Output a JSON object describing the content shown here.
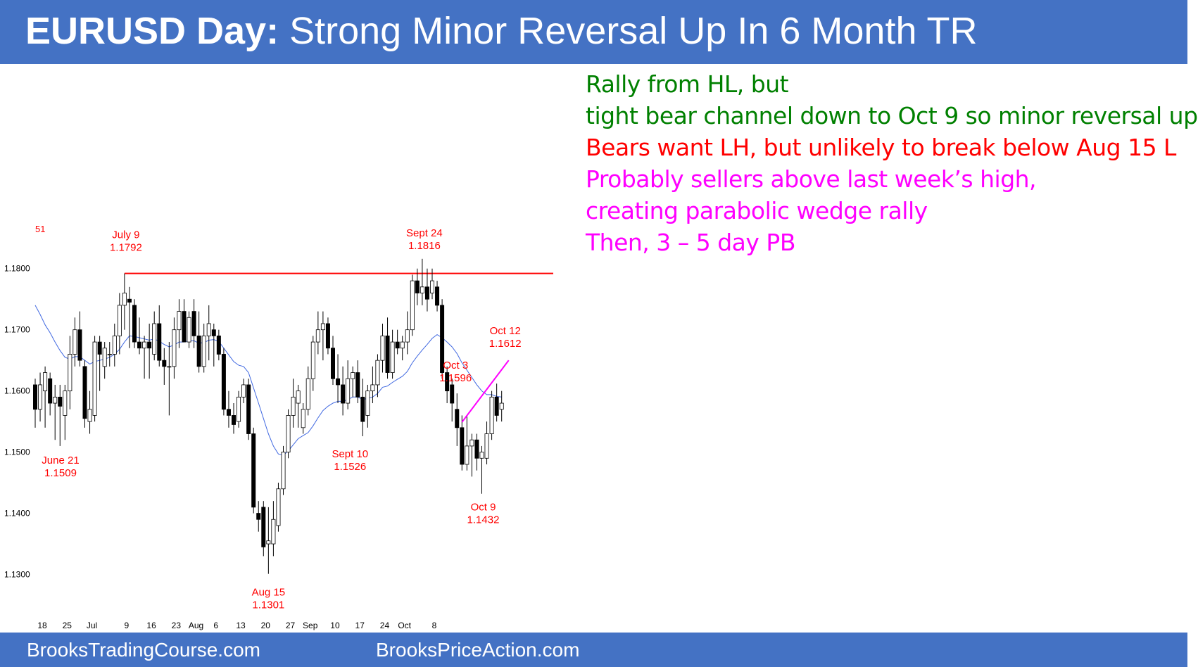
{
  "header": {
    "title_bold": "EURUSD Day:",
    "title_rest": " Strong Minor Reversal Up In 6 Month TR"
  },
  "notes": [
    {
      "text": "Rally from HL, but",
      "color": "#008000"
    },
    {
      "text": "tight bear channel down to Oct 9 so minor reversal up",
      "color": "#008000"
    },
    {
      "text": "Bears want LH, but unlikely to break below Aug 15 L",
      "color": "#ff0000"
    },
    {
      "text": "Probably sellers above last week’s high,",
      "color": "#ff00ff"
    },
    {
      "text": "creating parabolic wedge rally",
      "color": "#ff00ff"
    },
    {
      "text": "Then, 3 – 5 day PB",
      "color": "#ff00ff"
    }
  ],
  "footer": {
    "left": "BrooksTradingCourse.com",
    "right": "BrooksPriceAction.com"
  },
  "colors": {
    "bar": "#4472c4",
    "annotation": "#ff0000",
    "wedge": "#ff00ff",
    "ema": "#4169e1",
    "axis_text": "#000000"
  },
  "chart_data": {
    "type": "candlestick",
    "corner_label": "51",
    "ylim": [
      1.125,
      1.1875
    ],
    "y_ticks": [
      "1.1800",
      "1.1700",
      "1.1600",
      "1.1500",
      "1.1400",
      "1.1300"
    ],
    "x_ticks": [
      "18",
      "25",
      "Jul",
      "9",
      "16",
      "23",
      "Aug",
      "6",
      "13",
      "20",
      "27",
      "Sep",
      "10",
      "17",
      "24",
      "Oct",
      "8"
    ],
    "candles": [
      {
        "o": 1.161,
        "h": 1.162,
        "l": 1.154,
        "c": 1.157
      },
      {
        "o": 1.157,
        "h": 1.163,
        "l": 1.155,
        "c": 1.161
      },
      {
        "o": 1.16,
        "h": 1.164,
        "l": 1.154,
        "c": 1.163
      },
      {
        "o": 1.162,
        "h": 1.163,
        "l": 1.156,
        "c": 1.158
      },
      {
        "o": 1.158,
        "h": 1.161,
        "l": 1.152,
        "c": 1.159
      },
      {
        "o": 1.159,
        "h": 1.161,
        "l": 1.151,
        "c": 1.1575
      },
      {
        "o": 1.156,
        "h": 1.161,
        "l": 1.152,
        "c": 1.16
      },
      {
        "o": 1.16,
        "h": 1.169,
        "l": 1.157,
        "c": 1.166
      },
      {
        "o": 1.166,
        "h": 1.172,
        "l": 1.164,
        "c": 1.17
      },
      {
        "o": 1.17,
        "h": 1.173,
        "l": 1.164,
        "c": 1.165
      },
      {
        "o": 1.164,
        "h": 1.165,
        "l": 1.154,
        "c": 1.1555
      },
      {
        "o": 1.155,
        "h": 1.16,
        "l": 1.153,
        "c": 1.157
      },
      {
        "o": 1.156,
        "h": 1.169,
        "l": 1.155,
        "c": 1.168
      },
      {
        "o": 1.168,
        "h": 1.169,
        "l": 1.16,
        "c": 1.166
      },
      {
        "o": 1.164,
        "h": 1.168,
        "l": 1.162,
        "c": 1.167
      },
      {
        "o": 1.166,
        "h": 1.168,
        "l": 1.164,
        "c": 1.166
      },
      {
        "o": 1.166,
        "h": 1.171,
        "l": 1.164,
        "c": 1.169
      },
      {
        "o": 1.169,
        "h": 1.176,
        "l": 1.166,
        "c": 1.174
      },
      {
        "o": 1.174,
        "h": 1.1792,
        "l": 1.17,
        "c": 1.176
      },
      {
        "o": 1.175,
        "h": 1.177,
        "l": 1.167,
        "c": 1.1745
      },
      {
        "o": 1.174,
        "h": 1.175,
        "l": 1.167,
        "c": 1.168
      },
      {
        "o": 1.168,
        "h": 1.172,
        "l": 1.166,
        "c": 1.167
      },
      {
        "o": 1.167,
        "h": 1.169,
        "l": 1.162,
        "c": 1.168
      },
      {
        "o": 1.168,
        "h": 1.171,
        "l": 1.162,
        "c": 1.167
      },
      {
        "o": 1.166,
        "h": 1.173,
        "l": 1.165,
        "c": 1.171
      },
      {
        "o": 1.171,
        "h": 1.174,
        "l": 1.164,
        "c": 1.165
      },
      {
        "o": 1.165,
        "h": 1.167,
        "l": 1.161,
        "c": 1.164
      },
      {
        "o": 1.164,
        "h": 1.168,
        "l": 1.156,
        "c": 1.164
      },
      {
        "o": 1.164,
        "h": 1.172,
        "l": 1.162,
        "c": 1.17
      },
      {
        "o": 1.17,
        "h": 1.175,
        "l": 1.167,
        "c": 1.173
      },
      {
        "o": 1.173,
        "h": 1.175,
        "l": 1.168,
        "c": 1.168
      },
      {
        "o": 1.168,
        "h": 1.173,
        "l": 1.167,
        "c": 1.172
      },
      {
        "o": 1.173,
        "h": 1.175,
        "l": 1.167,
        "c": 1.169
      },
      {
        "o": 1.169,
        "h": 1.173,
        "l": 1.163,
        "c": 1.164
      },
      {
        "o": 1.164,
        "h": 1.171,
        "l": 1.163,
        "c": 1.169
      },
      {
        "o": 1.169,
        "h": 1.174,
        "l": 1.165,
        "c": 1.171
      },
      {
        "o": 1.17,
        "h": 1.171,
        "l": 1.164,
        "c": 1.169
      },
      {
        "o": 1.169,
        "h": 1.17,
        "l": 1.165,
        "c": 1.166
      },
      {
        "o": 1.166,
        "h": 1.167,
        "l": 1.156,
        "c": 1.157
      },
      {
        "o": 1.157,
        "h": 1.16,
        "l": 1.154,
        "c": 1.156
      },
      {
        "o": 1.156,
        "h": 1.158,
        "l": 1.153,
        "c": 1.1545
      },
      {
        "o": 1.155,
        "h": 1.16,
        "l": 1.154,
        "c": 1.159
      },
      {
        "o": 1.159,
        "h": 1.162,
        "l": 1.158,
        "c": 1.161
      },
      {
        "o": 1.161,
        "h": 1.162,
        "l": 1.152,
        "c": 1.153
      },
      {
        "o": 1.153,
        "h": 1.154,
        "l": 1.14,
        "c": 1.141
      },
      {
        "o": 1.14,
        "h": 1.142,
        "l": 1.137,
        "c": 1.139
      },
      {
        "o": 1.141,
        "h": 1.142,
        "l": 1.133,
        "c": 1.1345
      },
      {
        "o": 1.135,
        "h": 1.141,
        "l": 1.1301,
        "c": 1.1355
      },
      {
        "o": 1.135,
        "h": 1.142,
        "l": 1.133,
        "c": 1.139
      },
      {
        "o": 1.138,
        "h": 1.145,
        "l": 1.137,
        "c": 1.144
      },
      {
        "o": 1.144,
        "h": 1.151,
        "l": 1.143,
        "c": 1.15
      },
      {
        "o": 1.15,
        "h": 1.157,
        "l": 1.149,
        "c": 1.156
      },
      {
        "o": 1.156,
        "h": 1.162,
        "l": 1.154,
        "c": 1.159
      },
      {
        "o": 1.158,
        "h": 1.161,
        "l": 1.154,
        "c": 1.16
      },
      {
        "o": 1.154,
        "h": 1.158,
        "l": 1.153,
        "c": 1.157
      },
      {
        "o": 1.157,
        "h": 1.164,
        "l": 1.156,
        "c": 1.162
      },
      {
        "o": 1.162,
        "h": 1.169,
        "l": 1.16,
        "c": 1.168
      },
      {
        "o": 1.168,
        "h": 1.173,
        "l": 1.166,
        "c": 1.17
      },
      {
        "o": 1.17,
        "h": 1.173,
        "l": 1.165,
        "c": 1.171
      },
      {
        "o": 1.171,
        "h": 1.172,
        "l": 1.166,
        "c": 1.167
      },
      {
        "o": 1.167,
        "h": 1.169,
        "l": 1.161,
        "c": 1.162
      },
      {
        "o": 1.162,
        "h": 1.166,
        "l": 1.158,
        "c": 1.161
      },
      {
        "o": 1.161,
        "h": 1.164,
        "l": 1.156,
        "c": 1.158
      },
      {
        "o": 1.158,
        "h": 1.165,
        "l": 1.157,
        "c": 1.162
      },
      {
        "o": 1.162,
        "h": 1.164,
        "l": 1.159,
        "c": 1.163
      },
      {
        "o": 1.163,
        "h": 1.165,
        "l": 1.158,
        "c": 1.159
      },
      {
        "o": 1.159,
        "h": 1.162,
        "l": 1.1526,
        "c": 1.155
      },
      {
        "o": 1.156,
        "h": 1.161,
        "l": 1.154,
        "c": 1.16
      },
      {
        "o": 1.16,
        "h": 1.164,
        "l": 1.158,
        "c": 1.161
      },
      {
        "o": 1.161,
        "h": 1.166,
        "l": 1.159,
        "c": 1.165
      },
      {
        "o": 1.165,
        "h": 1.171,
        "l": 1.163,
        "c": 1.169
      },
      {
        "o": 1.169,
        "h": 1.172,
        "l": 1.162,
        "c": 1.163
      },
      {
        "o": 1.163,
        "h": 1.17,
        "l": 1.162,
        "c": 1.168
      },
      {
        "o": 1.168,
        "h": 1.17,
        "l": 1.166,
        "c": 1.167
      },
      {
        "o": 1.167,
        "h": 1.169,
        "l": 1.165,
        "c": 1.168
      },
      {
        "o": 1.168,
        "h": 1.173,
        "l": 1.166,
        "c": 1.17
      },
      {
        "o": 1.17,
        "h": 1.179,
        "l": 1.169,
        "c": 1.178
      },
      {
        "o": 1.178,
        "h": 1.18,
        "l": 1.174,
        "c": 1.176
      },
      {
        "o": 1.176,
        "h": 1.1816,
        "l": 1.174,
        "c": 1.177
      },
      {
        "o": 1.177,
        "h": 1.18,
        "l": 1.173,
        "c": 1.175
      },
      {
        "o": 1.176,
        "h": 1.18,
        "l": 1.175,
        "c": 1.178
      },
      {
        "o": 1.177,
        "h": 1.178,
        "l": 1.173,
        "c": 1.174
      },
      {
        "o": 1.174,
        "h": 1.175,
        "l": 1.162,
        "c": 1.163
      },
      {
        "o": 1.163,
        "h": 1.164,
        "l": 1.158,
        "c": 1.16
      },
      {
        "o": 1.161,
        "h": 1.162,
        "l": 1.155,
        "c": 1.158
      },
      {
        "o": 1.157,
        "h": 1.1596,
        "l": 1.151,
        "c": 1.154
      },
      {
        "o": 1.154,
        "h": 1.156,
        "l": 1.147,
        "c": 1.148
      },
      {
        "o": 1.148,
        "h": 1.156,
        "l": 1.147,
        "c": 1.151
      },
      {
        "o": 1.151,
        "h": 1.153,
        "l": 1.146,
        "c": 1.152
      },
      {
        "o": 1.152,
        "h": 1.153,
        "l": 1.147,
        "c": 1.149
      },
      {
        "o": 1.149,
        "h": 1.151,
        "l": 1.1432,
        "c": 1.15
      },
      {
        "o": 1.149,
        "h": 1.155,
        "l": 1.148,
        "c": 1.153
      },
      {
        "o": 1.153,
        "h": 1.16,
        "l": 1.152,
        "c": 1.159
      },
      {
        "o": 1.159,
        "h": 1.1612,
        "l": 1.155,
        "c": 1.156
      },
      {
        "o": 1.157,
        "h": 1.16,
        "l": 1.155,
        "c": 1.158
      }
    ],
    "ema": [
      1.174,
      1.1725,
      1.1708,
      1.1695,
      1.168,
      1.1666,
      1.1655,
      1.1652,
      1.1656,
      1.1656,
      1.165,
      1.1644,
      1.1648,
      1.165,
      1.1652,
      1.1655,
      1.166,
      1.1668,
      1.168,
      1.169,
      1.1689,
      1.1687,
      1.1685,
      1.1683,
      1.1685,
      1.1681,
      1.1676,
      1.1672,
      1.1675,
      1.168,
      1.168,
      1.1682,
      1.1682,
      1.1678,
      1.1679,
      1.1683,
      1.1684,
      1.1681,
      1.167,
      1.1659,
      1.1648,
      1.1642,
      1.164,
      1.163,
      1.1605,
      1.158,
      1.1555,
      1.153,
      1.151,
      1.1497,
      1.1495,
      1.1502,
      1.1512,
      1.1522,
      1.1527,
      1.1532,
      1.1543,
      1.1556,
      1.1568,
      1.1575,
      1.158,
      1.1583,
      1.1583,
      1.1586,
      1.159,
      1.159,
      1.1586,
      1.1588,
      1.159,
      1.1596,
      1.1606,
      1.1608,
      1.1614,
      1.1619,
      1.1624,
      1.1632,
      1.1646,
      1.1657,
      1.1667,
      1.1676,
      1.1686,
      1.1692,
      1.1687,
      1.168,
      1.1672,
      1.1661,
      1.1646,
      1.1634,
      1.1622,
      1.161,
      1.16,
      1.1594,
      1.1594,
      1.1591,
      1.159
    ],
    "resistance_level": 1.1792,
    "wedge_line": {
      "from": {
        "bar": 86,
        "value": 1.1549
      },
      "to": {
        "bar": 94,
        "value": 1.165
      }
    },
    "annotations": [
      {
        "label": "July 9",
        "value": "1.1792",
        "bar": 18,
        "position": "above"
      },
      {
        "label": "Sept 24",
        "value": "1.1816",
        "bar": 78,
        "position": "above"
      },
      {
        "label": "Oct 12",
        "value": "1.1612",
        "bar": 94,
        "position": "above"
      },
      {
        "label": "Oct 3",
        "value": "1.1596",
        "bar": 85,
        "position": "above"
      },
      {
        "label": "June 21",
        "value": "1.1509",
        "bar": 5,
        "position": "below"
      },
      {
        "label": "Sept 10",
        "value": "1.1526",
        "bar": 66,
        "position": "below"
      },
      {
        "label": "Aug 15",
        "value": "1.1301",
        "bar": 47,
        "position": "below"
      },
      {
        "label": "Oct 9",
        "value": "1.1432",
        "bar": 90,
        "position": "below"
      }
    ]
  }
}
